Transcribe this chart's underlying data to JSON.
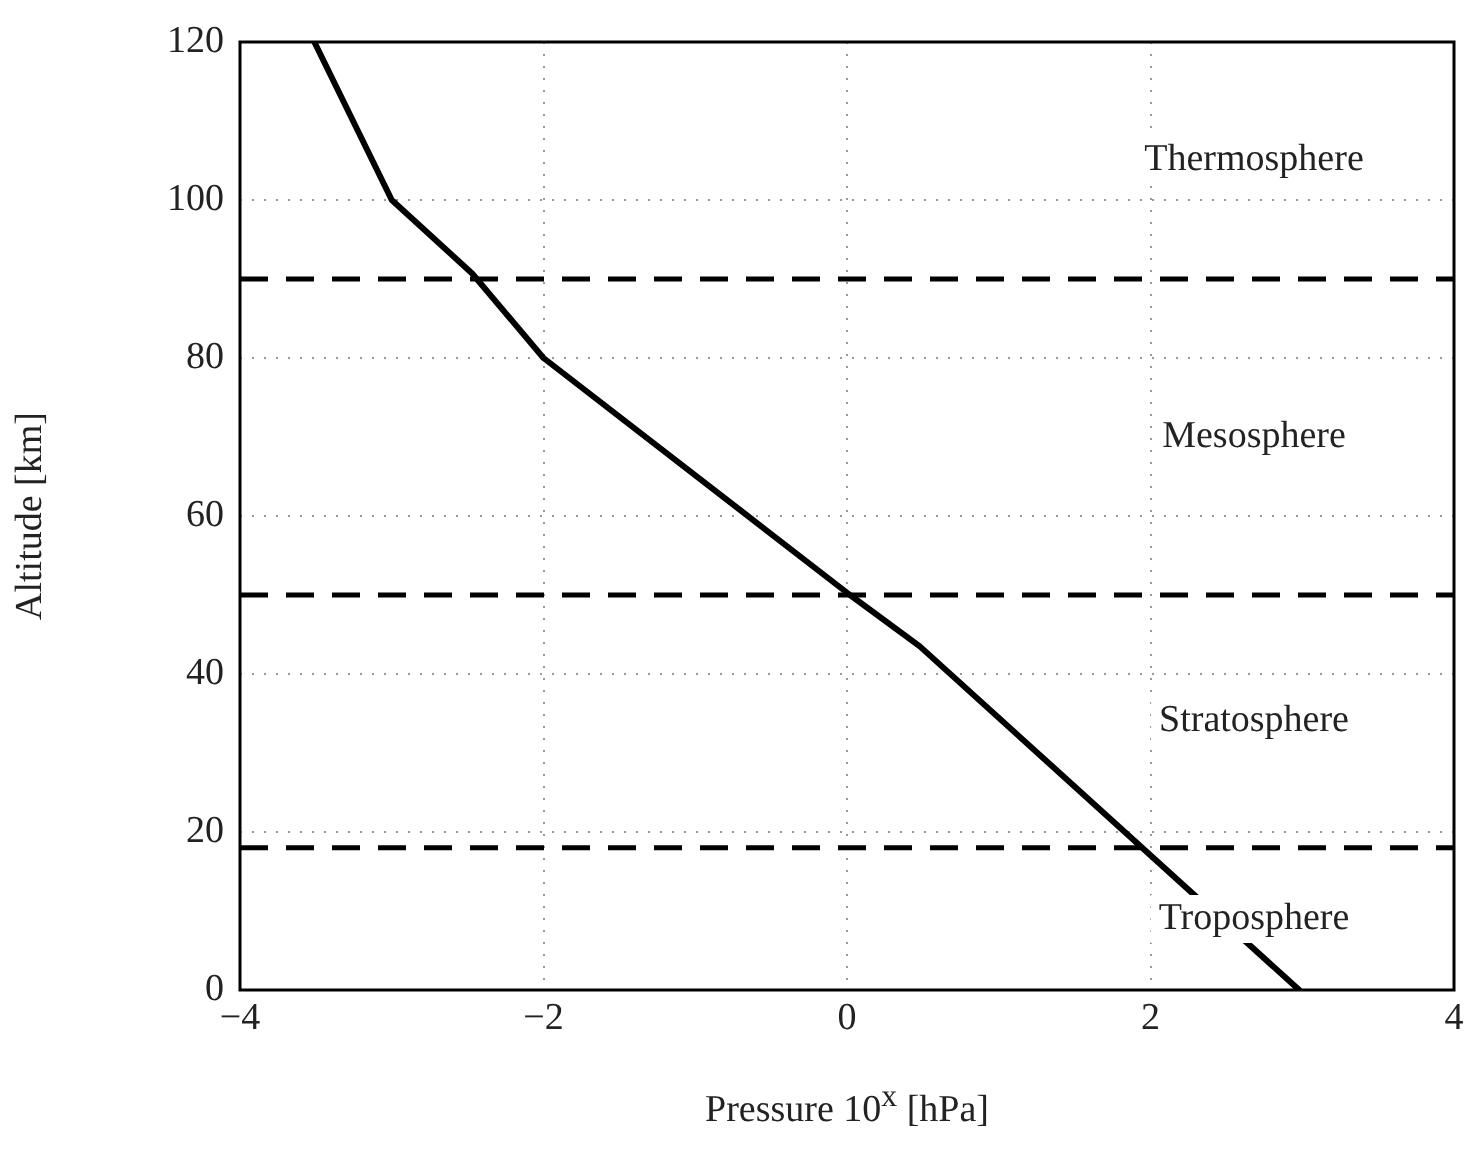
{
  "chart_data": {
    "type": "line",
    "xlabel": "Pressure 10$^{x}$ [hPa]",
    "ylabel": "Altitude [km]",
    "x": [
      -3.51,
      -3.0,
      -2.47,
      -2.0,
      0.02,
      0.48,
      2.98
    ],
    "series": [
      {
        "color": "#000000",
        "values": [
          120,
          100,
          90.7,
          80,
          50,
          43.5,
          0
        ]
      }
    ],
    "xlim": [
      -4,
      4
    ],
    "xticks": [
      -4,
      -2,
      0,
      2,
      4
    ],
    "ylim": [
      0,
      120
    ],
    "yticks": [
      0,
      20,
      40,
      60,
      80,
      100,
      120
    ],
    "grid": true,
    "legend": false,
    "marker": "none",
    "line_style": "solid",
    "ref_lines": [
      {
        "axis": "y",
        "value": 90,
        "color": "#000000",
        "line_style": "dashed"
      },
      {
        "axis": "y",
        "value": 50,
        "color": "#000000",
        "line_style": "dashed"
      },
      {
        "axis": "y",
        "value": 18,
        "color": "#000000",
        "line_style": "dashed"
      }
    ],
    "annotations": [
      "Thermosphere",
      "Mesosphere",
      "Stratosphere",
      "Troposphere"
    ]
  }
}
